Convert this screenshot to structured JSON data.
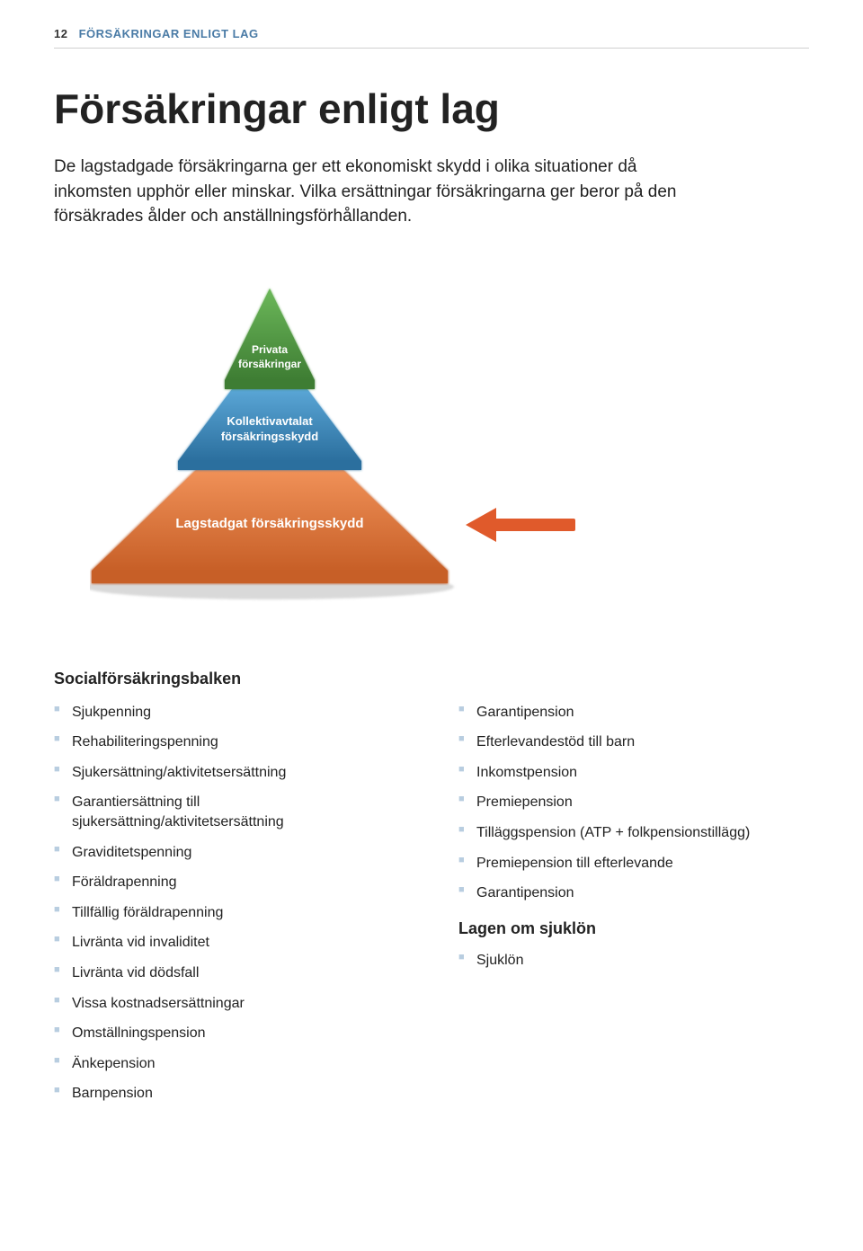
{
  "header": {
    "page_number": "12",
    "running_title": "FÖRSÄKRINGAR ENLIGT LAG"
  },
  "title": "Försäkringar enligt lag",
  "intro": "De lagstadgade försäkringarna ger ett ekonomiskt skydd i olika situationer då inkomsten upphör eller minskar. Vilka ersättningar försäkringarna ger beror på den försäkrades ålder och anställningsförhållanden.",
  "pyramid": {
    "type": "infographic",
    "layers": [
      {
        "label": "Privata försäkringar",
        "fill": "#5aa24a",
        "fill_dark": "#3e7d33",
        "text_color": "#ffffff",
        "fontsize": 14
      },
      {
        "label": "Kollektivavtalat försäkringsskydd",
        "fill": "#3f8fc4",
        "fill_dark": "#2b6f9e",
        "text_color": "#ffffff",
        "fontsize": 14
      },
      {
        "label": "Lagstadgat försäkringsskydd",
        "fill": "#e67a3e",
        "fill_dark": "#c75f27",
        "text_color": "#ffffff",
        "fontsize": 15
      }
    ],
    "arrow_color": "#e05a2b",
    "background_color": "#ffffff"
  },
  "section_heading": "Socialförsäkringsbalken",
  "left_list": [
    "Sjukpenning",
    "Rehabiliteringspenning",
    "Sjukersättning/aktivitetsersättning",
    "Garantiersättning till sjukersättning/aktivitetsersättning",
    "Graviditetspenning",
    "Föräldrapenning",
    "Tillfällig föräldrapenning",
    "Livränta vid invaliditet",
    "Livränta vid dödsfall",
    "Vissa kostnadsersättningar",
    "Omställningspension",
    "Änkepension",
    "Barnpension"
  ],
  "right_list_a": [
    "Garantipension",
    "Efterlevandestöd till barn",
    "Inkomstpension",
    "Premiepension",
    "Tilläggspension (ATP + folkpensionstillägg)",
    "Premiepension till efterlevande",
    "Garantipension"
  ],
  "right_heading": "Lagen om sjuklön",
  "right_list_b": [
    "Sjuklön"
  ],
  "bullet_color": "#b8cde0"
}
